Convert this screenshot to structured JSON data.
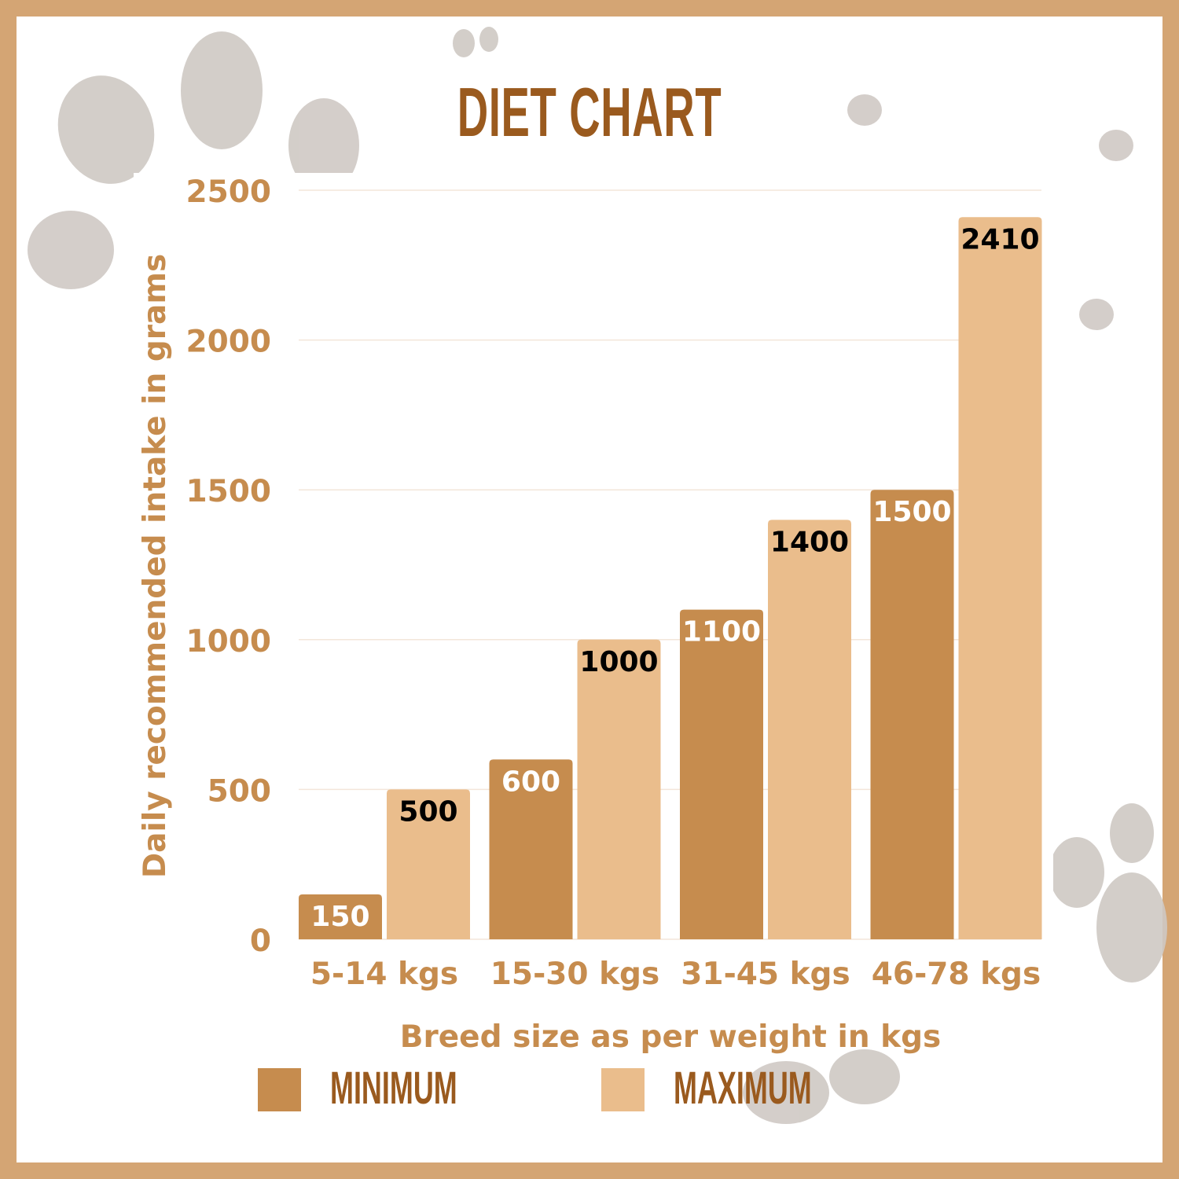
{
  "chart_data": {
    "type": "bar",
    "title": "DIET CHART",
    "xlabel": "Breed size as per weight in kgs",
    "ylabel": "Daily recommended intake in grams",
    "categories": [
      "5-14 kgs",
      "15-30 kgs",
      "31-45 kgs",
      "46-78 kgs"
    ],
    "series": [
      {
        "name": "MINIMUM",
        "values": [
          150,
          600,
          1100,
          1500
        ],
        "color": "#C68C4E",
        "label_color": "#FFFFFF"
      },
      {
        "name": "MAXIMUM",
        "values": [
          500,
          1000,
          1400,
          2410
        ],
        "color": "#EABD8C",
        "label_color": "#000000"
      }
    ],
    "ylim": [
      0,
      2500
    ],
    "yticks": [
      0,
      500,
      1000,
      1500,
      2000,
      2500
    ],
    "grid": true,
    "legend_position": "bottom",
    "colors": {
      "border": "#D4A574",
      "title": "#9A5A1E",
      "axis_text": "#C68C4E",
      "legend_text": "#9A5A1E"
    }
  }
}
